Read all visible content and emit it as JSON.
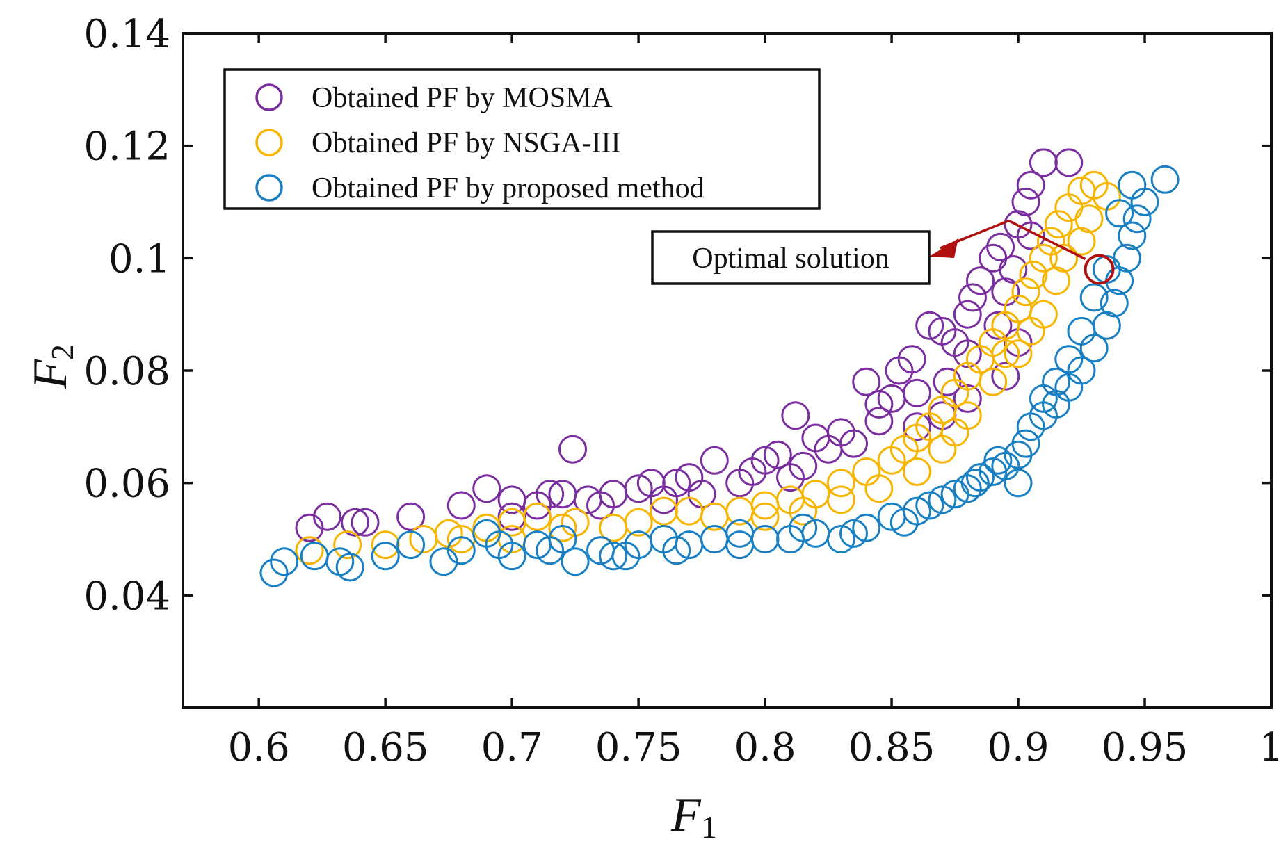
{
  "chart_data": {
    "type": "scatter",
    "title": "",
    "xlabel": "F",
    "xlabel_sub": "1",
    "ylabel": "F",
    "ylabel_sub": "2",
    "xlim": [
      0.57,
      1.0
    ],
    "ylim": [
      0.02,
      0.14
    ],
    "xticks": [
      0.6,
      0.65,
      0.7,
      0.75,
      0.8,
      0.85,
      0.9,
      0.95,
      1
    ],
    "xtick_labels": [
      "0.6",
      "0.65",
      "0.7",
      "0.75",
      "0.8",
      "0.85",
      "0.9",
      "0.95",
      "1"
    ],
    "yticks": [
      0.04,
      0.06,
      0.08,
      0.1,
      0.12,
      0.14
    ],
    "ytick_labels": [
      "0.04",
      "0.06",
      "0.08",
      "0.1",
      "0.12",
      "0.14"
    ],
    "grid": false,
    "legend_position": "top-left",
    "series": [
      {
        "name": "Obtained PF by MOSMA",
        "color": "#7a2ea0",
        "points": [
          [
            0.62,
            0.052
          ],
          [
            0.627,
            0.054
          ],
          [
            0.638,
            0.053
          ],
          [
            0.642,
            0.053
          ],
          [
            0.66,
            0.054
          ],
          [
            0.68,
            0.056
          ],
          [
            0.69,
            0.059
          ],
          [
            0.7,
            0.057
          ],
          [
            0.71,
            0.056
          ],
          [
            0.715,
            0.058
          ],
          [
            0.724,
            0.066
          ],
          [
            0.73,
            0.057
          ],
          [
            0.74,
            0.058
          ],
          [
            0.75,
            0.059
          ],
          [
            0.755,
            0.06
          ],
          [
            0.765,
            0.06
          ],
          [
            0.77,
            0.061
          ],
          [
            0.78,
            0.064
          ],
          [
            0.79,
            0.06
          ],
          [
            0.8,
            0.064
          ],
          [
            0.805,
            0.065
          ],
          [
            0.812,
            0.072
          ],
          [
            0.82,
            0.068
          ],
          [
            0.825,
            0.066
          ],
          [
            0.83,
            0.069
          ],
          [
            0.84,
            0.078
          ],
          [
            0.845,
            0.074
          ],
          [
            0.85,
            0.075
          ],
          [
            0.853,
            0.08
          ],
          [
            0.858,
            0.082
          ],
          [
            0.86,
            0.07
          ],
          [
            0.865,
            0.088
          ],
          [
            0.87,
            0.087
          ],
          [
            0.872,
            0.078
          ],
          [
            0.88,
            0.09
          ],
          [
            0.882,
            0.093
          ],
          [
            0.885,
            0.096
          ],
          [
            0.89,
            0.1
          ],
          [
            0.893,
            0.102
          ],
          [
            0.895,
            0.094
          ],
          [
            0.9,
            0.106
          ],
          [
            0.903,
            0.11
          ],
          [
            0.905,
            0.113
          ],
          [
            0.91,
            0.117
          ],
          [
            0.92,
            0.117
          ],
          [
            0.9,
            0.085
          ],
          [
            0.895,
            0.079
          ],
          [
            0.88,
            0.083
          ],
          [
            0.875,
            0.085
          ],
          [
            0.86,
            0.076
          ],
          [
            0.845,
            0.071
          ],
          [
            0.835,
            0.067
          ],
          [
            0.815,
            0.063
          ],
          [
            0.795,
            0.062
          ],
          [
            0.775,
            0.058
          ],
          [
            0.72,
            0.058
          ],
          [
            0.7,
            0.054
          ],
          [
            0.735,
            0.056
          ],
          [
            0.76,
            0.057
          ],
          [
            0.81,
            0.061
          ],
          [
            0.87,
            0.072
          ],
          [
            0.88,
            0.075
          ],
          [
            0.892,
            0.088
          ],
          [
            0.898,
            0.098
          ],
          [
            0.905,
            0.104
          ]
        ]
      },
      {
        "name": "Obtained PF by NSGA-III",
        "color": "#f7b500",
        "points": [
          [
            0.62,
            0.048
          ],
          [
            0.635,
            0.049
          ],
          [
            0.65,
            0.049
          ],
          [
            0.665,
            0.05
          ],
          [
            0.675,
            0.051
          ],
          [
            0.69,
            0.052
          ],
          [
            0.7,
            0.053
          ],
          [
            0.71,
            0.054
          ],
          [
            0.725,
            0.053
          ],
          [
            0.74,
            0.052
          ],
          [
            0.75,
            0.053
          ],
          [
            0.76,
            0.055
          ],
          [
            0.77,
            0.055
          ],
          [
            0.78,
            0.054
          ],
          [
            0.79,
            0.055
          ],
          [
            0.8,
            0.056
          ],
          [
            0.81,
            0.057
          ],
          [
            0.82,
            0.058
          ],
          [
            0.83,
            0.06
          ],
          [
            0.84,
            0.062
          ],
          [
            0.85,
            0.064
          ],
          [
            0.855,
            0.066
          ],
          [
            0.86,
            0.068
          ],
          [
            0.865,
            0.07
          ],
          [
            0.87,
            0.073
          ],
          [
            0.875,
            0.076
          ],
          [
            0.88,
            0.079
          ],
          [
            0.885,
            0.082
          ],
          [
            0.89,
            0.085
          ],
          [
            0.895,
            0.088
          ],
          [
            0.9,
            0.091
          ],
          [
            0.903,
            0.094
          ],
          [
            0.906,
            0.097
          ],
          [
            0.91,
            0.1
          ],
          [
            0.913,
            0.103
          ],
          [
            0.916,
            0.106
          ],
          [
            0.92,
            0.109
          ],
          [
            0.925,
            0.112
          ],
          [
            0.93,
            0.113
          ],
          [
            0.935,
            0.111
          ],
          [
            0.925,
            0.103
          ],
          [
            0.915,
            0.096
          ],
          [
            0.91,
            0.09
          ],
          [
            0.9,
            0.083
          ],
          [
            0.89,
            0.078
          ],
          [
            0.88,
            0.072
          ],
          [
            0.87,
            0.066
          ],
          [
            0.86,
            0.062
          ],
          [
            0.845,
            0.059
          ],
          [
            0.83,
            0.057
          ],
          [
            0.815,
            0.055
          ],
          [
            0.8,
            0.054
          ],
          [
            0.72,
            0.052
          ],
          [
            0.7,
            0.05
          ],
          [
            0.68,
            0.05
          ],
          [
            0.905,
            0.087
          ],
          [
            0.895,
            0.083
          ],
          [
            0.918,
            0.1
          ],
          [
            0.928,
            0.107
          ],
          [
            0.875,
            0.069
          ]
        ]
      },
      {
        "name": "Obtained PF by proposed method",
        "color": "#1a80c4",
        "points": [
          [
            0.606,
            0.044
          ],
          [
            0.61,
            0.046
          ],
          [
            0.622,
            0.047
          ],
          [
            0.632,
            0.046
          ],
          [
            0.636,
            0.045
          ],
          [
            0.65,
            0.047
          ],
          [
            0.66,
            0.049
          ],
          [
            0.673,
            0.046
          ],
          [
            0.68,
            0.048
          ],
          [
            0.69,
            0.051
          ],
          [
            0.7,
            0.047
          ],
          [
            0.71,
            0.049
          ],
          [
            0.72,
            0.05
          ],
          [
            0.725,
            0.046
          ],
          [
            0.735,
            0.048
          ],
          [
            0.74,
            0.047
          ],
          [
            0.75,
            0.049
          ],
          [
            0.76,
            0.05
          ],
          [
            0.77,
            0.049
          ],
          [
            0.78,
            0.05
          ],
          [
            0.79,
            0.051
          ],
          [
            0.8,
            0.05
          ],
          [
            0.81,
            0.05
          ],
          [
            0.82,
            0.051
          ],
          [
            0.83,
            0.05
          ],
          [
            0.84,
            0.052
          ],
          [
            0.85,
            0.054
          ],
          [
            0.86,
            0.055
          ],
          [
            0.87,
            0.057
          ],
          [
            0.875,
            0.058
          ],
          [
            0.88,
            0.059
          ],
          [
            0.885,
            0.061
          ],
          [
            0.89,
            0.062
          ],
          [
            0.895,
            0.063
          ],
          [
            0.9,
            0.065
          ],
          [
            0.903,
            0.067
          ],
          [
            0.905,
            0.07
          ],
          [
            0.91,
            0.072
          ],
          [
            0.915,
            0.074
          ],
          [
            0.92,
            0.077
          ],
          [
            0.925,
            0.08
          ],
          [
            0.93,
            0.084
          ],
          [
            0.935,
            0.088
          ],
          [
            0.938,
            0.092
          ],
          [
            0.94,
            0.096
          ],
          [
            0.943,
            0.1
          ],
          [
            0.945,
            0.104
          ],
          [
            0.947,
            0.107
          ],
          [
            0.95,
            0.11
          ],
          [
            0.945,
            0.113
          ],
          [
            0.958,
            0.114
          ],
          [
            0.94,
            0.108
          ],
          [
            0.935,
            0.098
          ],
          [
            0.93,
            0.093
          ],
          [
            0.925,
            0.087
          ],
          [
            0.92,
            0.082
          ],
          [
            0.915,
            0.078
          ],
          [
            0.91,
            0.075
          ],
          [
            0.9,
            0.06
          ],
          [
            0.892,
            0.064
          ],
          [
            0.883,
            0.06
          ],
          [
            0.865,
            0.056
          ],
          [
            0.855,
            0.053
          ],
          [
            0.835,
            0.051
          ],
          [
            0.815,
            0.052
          ],
          [
            0.79,
            0.049
          ],
          [
            0.765,
            0.048
          ],
          [
            0.745,
            0.047
          ],
          [
            0.715,
            0.048
          ],
          [
            0.695,
            0.049
          ]
        ]
      }
    ],
    "annotation": {
      "text": "Optimal solution",
      "x": 0.932,
      "y": 0.098,
      "color": "#b01010"
    }
  }
}
